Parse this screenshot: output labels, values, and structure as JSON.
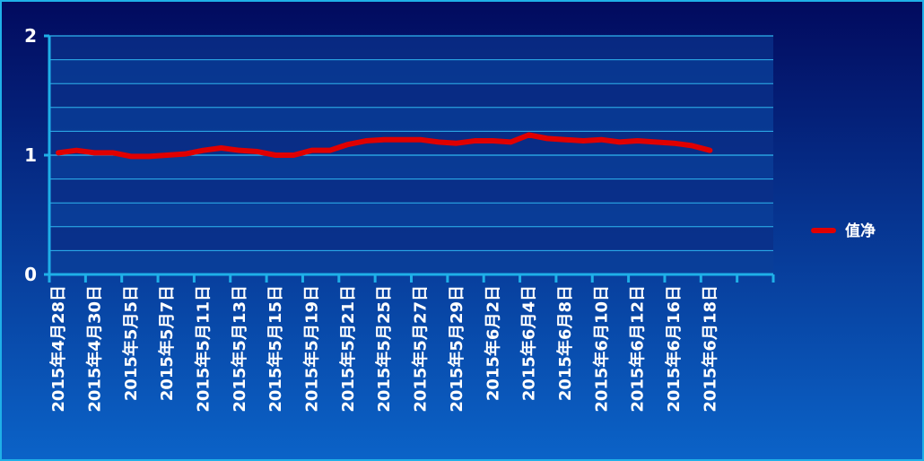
{
  "chart_data": {
    "type": "line",
    "categories": [
      "2015年4月28日",
      null,
      "2015年4月30日",
      null,
      "2015年5月5日",
      null,
      "2015年5月7日",
      null,
      "2015年5月11日",
      null,
      "2015年5月13日",
      null,
      "2015年5月15日",
      null,
      "2015年5月19日",
      null,
      "2015年5月21日",
      null,
      "2015年5月25日",
      null,
      "2015年5月27日",
      null,
      "2015年5月29日",
      null,
      "2015年6月2日",
      null,
      "2015年6月4日",
      null,
      "2015年6月8日",
      null,
      "2015年6月10日",
      null,
      "2015年6月12日",
      null,
      "2015年6月16日",
      null,
      "2015年6月18日",
      null,
      null,
      null
    ],
    "series": [
      {
        "name": "值净",
        "color": "#e00000",
        "values": [
          1.02,
          1.04,
          1.02,
          1.02,
          0.99,
          0.99,
          1.0,
          1.01,
          1.04,
          1.06,
          1.04,
          1.03,
          1.0,
          1.0,
          1.04,
          1.04,
          1.09,
          1.12,
          1.13,
          1.13,
          1.13,
          1.11,
          1.1,
          1.12,
          1.12,
          1.11,
          1.17,
          1.14,
          1.13,
          1.12,
          1.13,
          1.11,
          1.12,
          1.11,
          1.1,
          1.08,
          1.04,
          null,
          null,
          null
        ]
      }
    ],
    "ylim": [
      0,
      2
    ],
    "yticks": [
      0,
      1,
      2
    ],
    "grid": true,
    "legend": "right"
  }
}
